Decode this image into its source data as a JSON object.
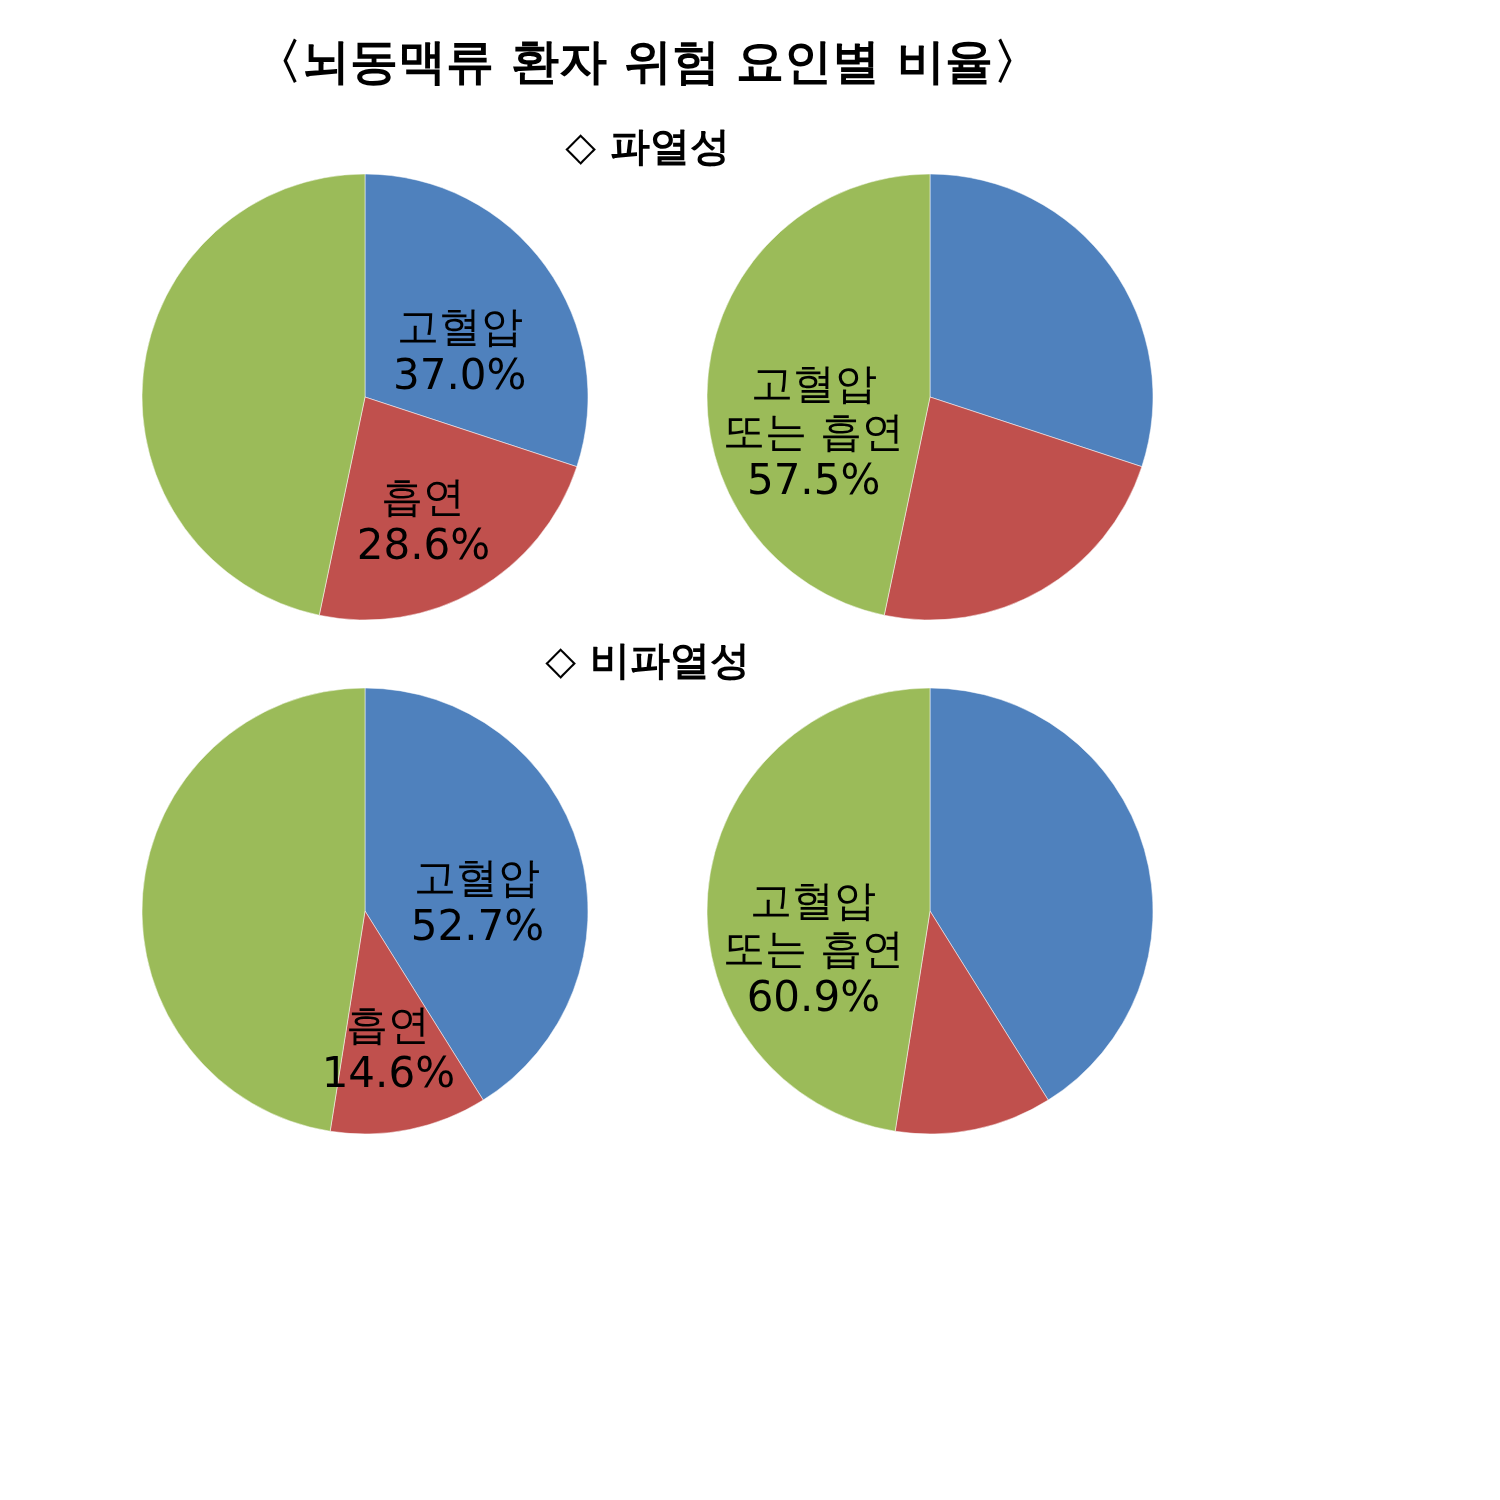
{
  "chart_data": [
    {
      "type": "pie",
      "title": "〈뇌동맥류 환자 위험 요인별 비율〉",
      "subtitle": "◇ 파열성",
      "categories": [
        "고혈압",
        "흡연",
        null
      ],
      "values": [
        37.0,
        28.6,
        57.5
      ],
      "value_labels": [
        "37.0%",
        "28.6%",
        null
      ],
      "colors": [
        "#4f81bd",
        "#c0504d",
        "#9bbb59"
      ]
    },
    {
      "type": "pie",
      "categories": [
        null,
        null,
        "고혈압 또는 흡연"
      ],
      "values": [
        37.0,
        28.6,
        57.5
      ],
      "value_labels": [
        null,
        null,
        "57.5%"
      ],
      "colors": [
        "#4f81bd",
        "#c0504d",
        "#9bbb59"
      ]
    },
    {
      "type": "pie",
      "subtitle": "◇ 비파열성",
      "categories": [
        "고혈압",
        "흡연",
        null
      ],
      "values": [
        52.7,
        14.6,
        60.9
      ],
      "value_labels": [
        "52.7%",
        "14.6%",
        null
      ],
      "colors": [
        "#4f81bd",
        "#c0504d",
        "#9bbb59"
      ]
    },
    {
      "type": "pie",
      "categories": [
        null,
        null,
        "고혈압 또는 흡연"
      ],
      "values": [
        52.7,
        14.6,
        60.9
      ],
      "value_labels": [
        null,
        null,
        "60.9%"
      ],
      "colors": [
        "#4f81bd",
        "#c0504d",
        "#9bbb59"
      ]
    }
  ]
}
